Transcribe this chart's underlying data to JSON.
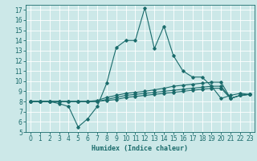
{
  "xlabel": "Humidex (Indice chaleur)",
  "xlim": [
    -0.5,
    23.5
  ],
  "ylim": [
    5,
    17.5
  ],
  "yticks": [
    5,
    6,
    7,
    8,
    9,
    10,
    11,
    12,
    13,
    14,
    15,
    16,
    17
  ],
  "xticks": [
    0,
    1,
    2,
    3,
    4,
    5,
    6,
    7,
    8,
    9,
    10,
    11,
    12,
    13,
    14,
    15,
    16,
    17,
    18,
    19,
    20,
    21,
    22,
    23
  ],
  "bg_color": "#cce8e8",
  "line_color": "#1a6b6b",
  "grid_color": "#ffffff",
  "lines": [
    {
      "x": [
        0,
        1,
        2,
        3,
        4,
        5,
        6,
        7,
        8,
        9,
        10,
        11,
        12,
        13,
        14,
        15,
        16,
        17,
        18,
        19,
        20,
        21,
        22,
        23
      ],
      "y": [
        8.0,
        8.0,
        8.0,
        7.8,
        7.5,
        5.5,
        6.3,
        7.5,
        9.8,
        13.3,
        14.0,
        14.0,
        17.2,
        13.2,
        15.4,
        12.5,
        11.0,
        10.4,
        10.4,
        9.5,
        8.3,
        8.6,
        8.8,
        8.7
      ]
    },
    {
      "x": [
        0,
        1,
        2,
        3,
        4,
        5,
        6,
        7,
        8,
        9,
        10,
        11,
        12,
        13,
        14,
        15,
        16,
        17,
        18,
        19,
        20,
        21,
        22,
        23
      ],
      "y": [
        8.0,
        8.0,
        8.0,
        8.0,
        8.0,
        8.0,
        8.0,
        8.1,
        8.4,
        8.6,
        8.8,
        8.9,
        9.0,
        9.15,
        9.3,
        9.5,
        9.6,
        9.7,
        9.8,
        9.9,
        9.9,
        8.3,
        8.6,
        8.7
      ]
    },
    {
      "x": [
        0,
        1,
        2,
        3,
        4,
        5,
        6,
        7,
        8,
        9,
        10,
        11,
        12,
        13,
        14,
        15,
        16,
        17,
        18,
        19,
        20,
        21,
        22,
        23
      ],
      "y": [
        8.0,
        8.0,
        8.0,
        8.0,
        8.0,
        8.0,
        8.0,
        8.0,
        8.2,
        8.4,
        8.6,
        8.7,
        8.8,
        8.9,
        9.0,
        9.1,
        9.2,
        9.3,
        9.4,
        9.5,
        9.5,
        8.3,
        8.6,
        8.7
      ]
    },
    {
      "x": [
        0,
        1,
        2,
        3,
        4,
        5,
        6,
        7,
        8,
        9,
        10,
        11,
        12,
        13,
        14,
        15,
        16,
        17,
        18,
        19,
        20,
        21,
        22,
        23
      ],
      "y": [
        8.0,
        8.0,
        8.0,
        8.0,
        8.0,
        8.0,
        8.0,
        8.0,
        8.1,
        8.2,
        8.4,
        8.5,
        8.6,
        8.7,
        8.8,
        8.9,
        9.0,
        9.1,
        9.2,
        9.3,
        9.3,
        8.3,
        8.6,
        8.7
      ]
    }
  ]
}
